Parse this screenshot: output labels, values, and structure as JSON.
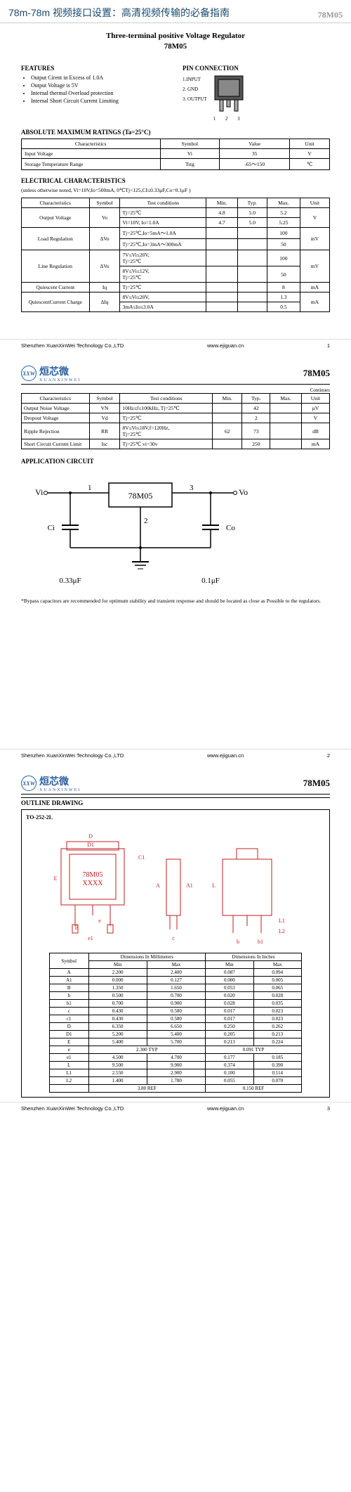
{
  "header": {
    "title": "78m-78m 视频接口设置：高清视频传输的必备指南",
    "part": "78M05"
  },
  "page1": {
    "title": "Three-terminal positive Voltage Regulator",
    "sub": "78M05",
    "features_h": "FEATURES",
    "features": [
      "Output Cirent in Excess of 1.0A",
      "Output Voltage is 5V",
      "Internal thermal Overload protection",
      "Internal Short Circuit Current Limiting"
    ],
    "pinconn_h": "PIN CONNECTION",
    "pins": [
      "1.INPUT",
      "2. GND",
      "3. OUTPUT"
    ],
    "pin_nums": "1  2  3",
    "amr_h": "ABSOLUTE MAXIMUM RATINGS (Ta=25°C)",
    "amr_cols": [
      "Characteristics",
      "Symbol",
      "Value",
      "Unit"
    ],
    "amr_rows": [
      [
        "Input Voltage",
        "Vi",
        "35",
        "V"
      ],
      [
        "Storage Temperature Range",
        "Tstg",
        "-65～150",
        "℃"
      ]
    ],
    "ec_h": "ELECTRICAL CHARACTERISTICS",
    "ec_note": "(unless otherwise noted, Vi=10V,Io=500mA, 0℃Tj<125,CI≤0.33μF,Co=0.1μF    )",
    "ec_cols": [
      "Characteristics",
      "Symbol",
      "Test conditions",
      "Min.",
      "Typ.",
      "Max.",
      "Unit"
    ],
    "ec": {
      "r1": {
        "c": "Output Voltage",
        "s": "Vo",
        "t1": "Tj=25℃",
        "v1": [
          "4.8",
          "5.0",
          "5.2"
        ],
        "t2": "Vi=10V, Io=1.0A",
        "v2": [
          "4.7",
          "5.0",
          "5.25"
        ],
        "u": "V"
      },
      "r2": {
        "c": "Load Regulation",
        "s": "ΔVo",
        "t1": "Tj=25℃,Io=5mA～1.0A",
        "v1": [
          "",
          "",
          "100"
        ],
        "t2": "Tj=25℃,Io=3mA～300mA",
        "v2": [
          "",
          "",
          "50"
        ],
        "u": "mV"
      },
      "r3": {
        "c": "Line Regulation",
        "s": "ΔVo",
        "t1": "7V≤Vi≤20V,\nTj=25℃",
        "v1": [
          "",
          "",
          "100"
        ],
        "t2": "8V≤Vi≤12V,\nTj=25℃",
        "v2": [
          "",
          "",
          "50"
        ],
        "u": "mV"
      },
      "r4": {
        "c": "Quiescent Current",
        "s": "Iq",
        "t": "Tj=25℃",
        "v": [
          "",
          "",
          "8"
        ],
        "u": "mA"
      },
      "r5": {
        "c": "QuiescentCurrent Charge",
        "s": "ΔIq",
        "t1": "8V≤Vi≤20V,",
        "v1": [
          "",
          "",
          "1.3"
        ],
        "t2": "3mA≤Io≤3.0A",
        "v2": [
          "",
          "",
          "0.5"
        ],
        "u": "mA"
      }
    }
  },
  "page2": {
    "cont": "Continues",
    "cols": [
      "Characteristics",
      "Symbol",
      "Test conditions",
      "Min.",
      "Typ.",
      "Max.",
      "Unit"
    ],
    "rows": [
      [
        "Output Noise Voltage",
        "VN",
        "10Hz≤f≤100kHz, Tj=25℃",
        "",
        "42",
        "",
        "μV"
      ],
      [
        "Dropout Voltage",
        "Vd",
        "Tj=25℃",
        "",
        "2",
        "",
        "V"
      ],
      [
        "Ripple Rejection",
        "RR",
        "8V≤Vi≤18V,f=120Hz,\nTj=25℃",
        "62",
        "73",
        "",
        "dB"
      ],
      [
        "Short Circuit Current Limit",
        "Isc",
        "Tj=25℃ vi=30v",
        "",
        "250",
        "",
        "mA"
      ]
    ],
    "app_h": "APPLICATION CIRCUIT",
    "circuit": {
      "vi": "Vi",
      "vo": "Vo",
      "p1": "1",
      "p2": "2",
      "p3": "3",
      "chip": "78M05",
      "ci": "Ci",
      "co": "Co",
      "cival": "0.33μF",
      "coval": "0.1μF"
    },
    "note": "*Bypass capacitors are recommended for optimum stability and transient response and should be located as close as Possible to the regulators."
  },
  "page3": {
    "outline_h": "OUTLINE DRAWING",
    "pkg": "TO-252-2L",
    "chip_mark": "78M05\nXXXX",
    "dims": {
      "A": "A",
      "B": "B",
      "e": "e",
      "D": "D",
      "D1": "D1",
      "E": "E",
      "C1": "C1",
      "A1": "A1",
      "L": "L",
      "L1": "L1",
      "L2": "L2",
      "e1": "e1",
      "b": "b",
      "b1": "b1",
      "c": "c"
    },
    "dim_h1": "Dimensions In Millimeters",
    "dim_h2": "Dimensions In Inches",
    "dim_cols": [
      "Symbol",
      "Min",
      "Max",
      "Min",
      "Max"
    ],
    "dim_rows": [
      [
        "A",
        "2.200",
        "2.400",
        "0.087",
        "0.094"
      ],
      [
        "A1",
        "0.000",
        "0.127",
        "0.000",
        "0.005"
      ],
      [
        "B",
        "1.350",
        "1.650",
        "0.053",
        "0.065"
      ],
      [
        "b",
        "0.500",
        "0.700",
        "0.020",
        "0.028"
      ],
      [
        "b1",
        "0.700",
        "0.900",
        "0.028",
        "0.035"
      ],
      [
        "c",
        "0.430",
        "0.580",
        "0.017",
        "0.023"
      ],
      [
        "c1",
        "0.430",
        "0.580",
        "0.017",
        "0.023"
      ],
      [
        "D",
        "6.350",
        "6.650",
        "0.250",
        "0.262"
      ],
      [
        "D1",
        "5.200",
        "5.400",
        "0.205",
        "0.213"
      ],
      [
        "E",
        "5.400",
        "5.700",
        "0.213",
        "0.224"
      ],
      [
        "e",
        "2.300 TYP",
        "",
        "0.091 TYP",
        ""
      ],
      [
        "e1",
        "4.500",
        "4.700",
        "0.177",
        "0.185"
      ],
      [
        "L",
        "9.500",
        "9.900",
        "0.374",
        "0.390"
      ],
      [
        "L1",
        "2.550",
        "2.900",
        "0.100",
        "0.114"
      ],
      [
        "L2",
        "1.400",
        "1.780",
        "0.055",
        "0.070"
      ],
      [
        "",
        "3.80 REF",
        "",
        "0.150 REF",
        ""
      ]
    ]
  },
  "footer": {
    "company": "Shenzhen XuanXinWei Technology Co.,LTD",
    "url": "www.ejiguan.cn"
  }
}
